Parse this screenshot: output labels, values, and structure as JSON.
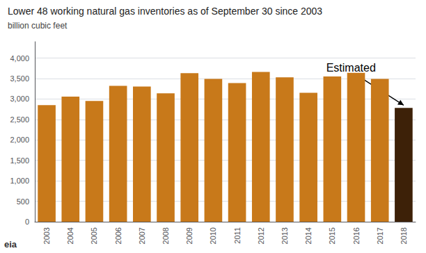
{
  "chart_data": {
    "type": "bar",
    "title": "Lower 48 working natural gas inventories as of September 30 since 2003",
    "subtitle": "billion cubic feet",
    "categories": [
      "2003",
      "2004",
      "2005",
      "2006",
      "2007",
      "2008",
      "2009",
      "2010",
      "2011",
      "2012",
      "2013",
      "2014",
      "2015",
      "2016",
      "2017",
      "2018"
    ],
    "values": [
      2850,
      3060,
      2950,
      3320,
      3305,
      3140,
      3630,
      3490,
      3390,
      3660,
      3530,
      3150,
      3550,
      3640,
      3490,
      2780
    ],
    "colors": [
      "#C8791A",
      "#C8791A",
      "#C8791A",
      "#C8791A",
      "#C8791A",
      "#C8791A",
      "#C8791A",
      "#C8791A",
      "#C8791A",
      "#C8791A",
      "#C8791A",
      "#C8791A",
      "#C8791A",
      "#C8791A",
      "#C8791A",
      "#3D2108"
    ],
    "ylim": [
      0,
      4400
    ],
    "yticks": [
      0,
      500,
      {
        "value": 1000,
        "label": "1,000"
      },
      {
        "value": 1500,
        "label": "1,500"
      },
      {
        "value": 2000,
        "label": "2,000"
      },
      {
        "value": 2500,
        "label": "2,500"
      },
      {
        "value": 3000,
        "label": "3,000"
      },
      {
        "value": 3500,
        "label": "3,500"
      },
      {
        "value": 4000,
        "label": "4,000"
      }
    ],
    "grid": true,
    "annotations": [
      {
        "text": "Estimated",
        "x": "2018"
      },
      {
        "text": "eia"
      }
    ]
  }
}
